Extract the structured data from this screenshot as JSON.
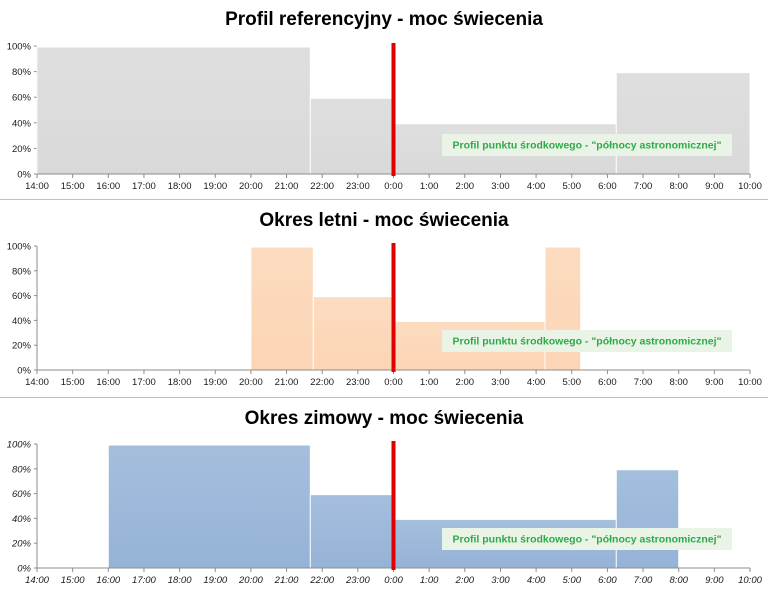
{
  "chart_data": [
    {
      "type": "area",
      "title": "Profil referencyjny - moc świecenia",
      "categories": [
        "14:00",
        "15:00",
        "16:00",
        "17:00",
        "18:00",
        "19:00",
        "20:00",
        "21:00",
        "22:00",
        "23:00",
        "0:00",
        "1:00",
        "2:00",
        "3:00",
        "4:00",
        "5:00",
        "6:00",
        "7:00",
        "8:00",
        "9:00",
        "10:00"
      ],
      "yticks": [
        "0%",
        "20%",
        "40%",
        "60%",
        "80%",
        "100%"
      ],
      "ylim": [
        0,
        100
      ],
      "step_profile": [
        {
          "from": "14:00",
          "to": "21:40",
          "value": 100
        },
        {
          "from": "21:40",
          "to": "0:00",
          "value": 60
        },
        {
          "from": "0:00",
          "to": "6:15",
          "value": 40
        },
        {
          "from": "6:15",
          "to": "10:00",
          "value": 80
        }
      ],
      "fill_color": "#d9d9d9",
      "midnight_marker": "0:00",
      "annotation": "Profil punktu środkowego - \"północy astronomicznej\"",
      "tick_italic": false
    },
    {
      "type": "area",
      "title": "Okres letni - moc świecenia",
      "categories": [
        "14:00",
        "15:00",
        "16:00",
        "17:00",
        "18:00",
        "19:00",
        "20:00",
        "21:00",
        "22:00",
        "23:00",
        "0:00",
        "1:00",
        "2:00",
        "3:00",
        "4:00",
        "5:00",
        "6:00",
        "7:00",
        "8:00",
        "9:00",
        "10:00"
      ],
      "yticks": [
        "0%",
        "20%",
        "40%",
        "60%",
        "80%",
        "100%"
      ],
      "ylim": [
        0,
        100
      ],
      "step_profile": [
        {
          "from": "20:00",
          "to": "21:45",
          "value": 100
        },
        {
          "from": "21:45",
          "to": "0:00",
          "value": 60
        },
        {
          "from": "0:00",
          "to": "4:15",
          "value": 40
        },
        {
          "from": "4:15",
          "to": "5:15",
          "value": 100
        }
      ],
      "fill_color": "#fcd5b5",
      "midnight_marker": "0:00",
      "annotation": "Profil punktu środkowego - \"północy astronomicznej\"",
      "tick_italic": false
    },
    {
      "type": "area",
      "title": "Okres zimowy - moc świecenia",
      "categories": [
        "14:00",
        "15:00",
        "16:00",
        "17:00",
        "18:00",
        "19:00",
        "20:00",
        "21:00",
        "22:00",
        "23:00",
        "0:00",
        "1:00",
        "2:00",
        "3:00",
        "4:00",
        "5:00",
        "6:00",
        "7:00",
        "8:00",
        "9:00",
        "10:00"
      ],
      "yticks": [
        "0%",
        "20%",
        "40%",
        "60%",
        "80%",
        "100%"
      ],
      "ylim": [
        0,
        100
      ],
      "step_profile": [
        {
          "from": "16:00",
          "to": "21:40",
          "value": 100
        },
        {
          "from": "21:40",
          "to": "0:00",
          "value": 60
        },
        {
          "from": "0:00",
          "to": "6:15",
          "value": 40
        },
        {
          "from": "6:15",
          "to": "8:00",
          "value": 80
        }
      ],
      "fill_color": "#95b3d7",
      "midnight_marker": "0:00",
      "annotation": "Profil punktu środkowego - \"północy astronomicznej\"",
      "tick_italic": true
    }
  ],
  "colors": {
    "midnight_line": "#e00000",
    "annotation_text": "#2eaa4a",
    "annotation_bg": "#e9f4e6"
  }
}
